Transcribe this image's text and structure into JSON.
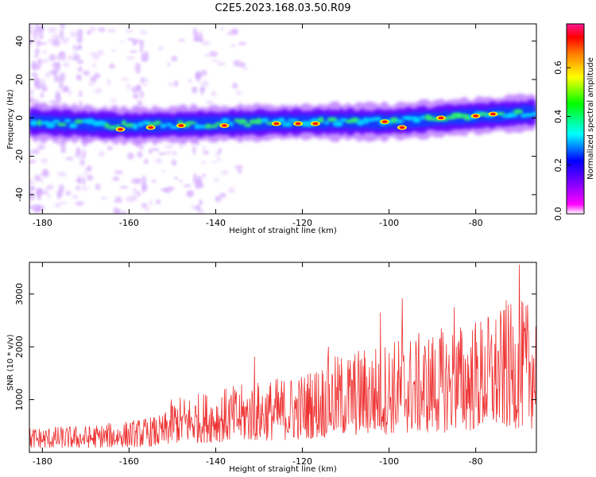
{
  "title": "C2E5.2023.168.03.50.R09",
  "chart_data": [
    {
      "type": "heatmap",
      "xlabel": "Height of straight line (km)",
      "ylabel": "Frequency (Hz)",
      "xlim": [
        -183,
        -66
      ],
      "ylim": [
        -50,
        49
      ],
      "x_ticks": [
        -180,
        -160,
        -140,
        -120,
        -100,
        -80
      ],
      "y_ticks": [
        -40,
        -20,
        0,
        20,
        40
      ],
      "colorbar": {
        "label": "Normalized spectral amplitude",
        "range": [
          0.0,
          0.78
        ],
        "ticks": [
          0.0,
          0.2,
          0.4,
          0.6
        ],
        "colors": [
          "#ffffff",
          "#ff00ff",
          "#8000ff",
          "#0000ff",
          "#00ffff",
          "#00ff00",
          "#ffff00",
          "#ff8000",
          "#ff0000",
          "#ff1493"
        ]
      },
      "band": {
        "center_hz": [
          [
            -183,
            -2
          ],
          [
            -160,
            -4
          ],
          [
            -140,
            -3
          ],
          [
            -120,
            -2
          ],
          [
            -100,
            -2
          ],
          [
            -80,
            1
          ],
          [
            -66,
            3
          ]
        ],
        "halfwidth_hz": 6
      },
      "hotspots": [
        [
          -162,
          -6
        ],
        [
          -155,
          -5
        ],
        [
          -148,
          -4
        ],
        [
          -138,
          -4
        ],
        [
          -126,
          -3
        ],
        [
          -121,
          -3
        ],
        [
          -117,
          -3
        ],
        [
          -101,
          -2
        ],
        [
          -97,
          -5
        ],
        [
          -88,
          0
        ],
        [
          -80,
          1
        ],
        [
          -76,
          2
        ]
      ]
    },
    {
      "type": "line",
      "xlabel": "Height of straight line (km)",
      "ylabel": "SNR (10 * v/v)",
      "xlim": [
        -183,
        -66
      ],
      "ylim": [
        0,
        3600
      ],
      "x_ticks": [
        -180,
        -160,
        -140,
        -120,
        -100,
        -80
      ],
      "y_ticks": [
        1000,
        2000,
        3000
      ],
      "color": "#ee3333",
      "envelope": {
        "x": [
          -183,
          -170,
          -160,
          -152,
          -150,
          -140,
          -130,
          -120,
          -115,
          -110,
          -100,
          -90,
          -80,
          -70,
          -66
        ],
        "y": [
          300,
          320,
          380,
          450,
          650,
          750,
          850,
          950,
          1100,
          1200,
          1350,
          1450,
          1600,
          1800,
          1800
        ]
      },
      "peaks": [
        {
          "x": -131,
          "y": 1810
        },
        {
          "x": -114,
          "y": 2000
        },
        {
          "x": -102,
          "y": 2650
        },
        {
          "x": -97,
          "y": 2920
        },
        {
          "x": -85,
          "y": 2750
        },
        {
          "x": -73,
          "y": 2880
        },
        {
          "x": -70,
          "y": 3560
        },
        {
          "x": -67,
          "y": 1850
        }
      ]
    }
  ]
}
